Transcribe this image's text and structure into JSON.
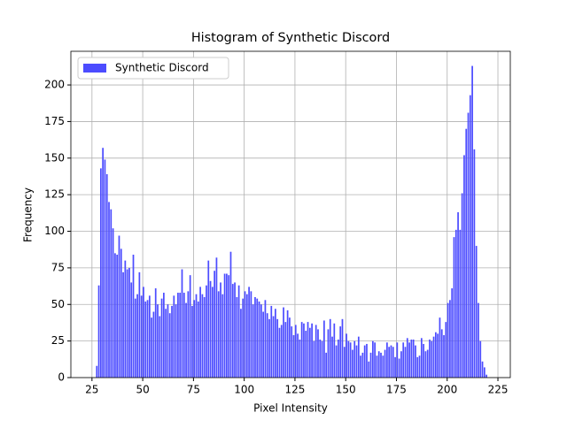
{
  "chart_data": {
    "type": "histogram",
    "title": "Histogram of Synthetic Discord",
    "xlabel": "Pixel Intensity",
    "ylabel": "Frequency",
    "bins": [
      27,
      28,
      29,
      30,
      31,
      32,
      33,
      34,
      35,
      36,
      37,
      38,
      39,
      40,
      41,
      42,
      43,
      44,
      45,
      46,
      47,
      48,
      49,
      50,
      51,
      52,
      53,
      54,
      55,
      56,
      57,
      58,
      59,
      60,
      61,
      62,
      63,
      64,
      65,
      66,
      67,
      68,
      69,
      70,
      71,
      72,
      73,
      74,
      75,
      76,
      77,
      78,
      79,
      80,
      81,
      82,
      83,
      84,
      85,
      86,
      87,
      88,
      89,
      90,
      91,
      92,
      93,
      94,
      95,
      96,
      97,
      98,
      99,
      100,
      101,
      102,
      103,
      104,
      105,
      106,
      107,
      108,
      109,
      110,
      111,
      112,
      113,
      114,
      115,
      116,
      117,
      118,
      119,
      120,
      121,
      122,
      123,
      124,
      125,
      126,
      127,
      128,
      129,
      130,
      131,
      132,
      133,
      134,
      135,
      136,
      137,
      138,
      139,
      140,
      141,
      142,
      143,
      144,
      145,
      146,
      147,
      148,
      149,
      150,
      151,
      152,
      153,
      154,
      155,
      156,
      157,
      158,
      159,
      160,
      161,
      162,
      163,
      164,
      165,
      166,
      167,
      168,
      169,
      170,
      171,
      172,
      173,
      174,
      175,
      176,
      177,
      178,
      179,
      180,
      181,
      182,
      183,
      184,
      185,
      186,
      187,
      188,
      189,
      190,
      191,
      192,
      193,
      194,
      195,
      196,
      197,
      198,
      199,
      200,
      201,
      202,
      203,
      204,
      205,
      206,
      207,
      208,
      209,
      210,
      211,
      212,
      213,
      214,
      215,
      216,
      217,
      218,
      219,
      220
    ],
    "series": [
      {
        "name": "Synthetic Discord",
        "color": "#4c4cff",
        "values": [
          8,
          63,
          143,
          157,
          149,
          139,
          120,
          115,
          102,
          85,
          84,
          97,
          88,
          72,
          80,
          74,
          75,
          65,
          84,
          54,
          57,
          72,
          56,
          62,
          52,
          53,
          56,
          41,
          45,
          61,
          50,
          42,
          54,
          58,
          47,
          50,
          44,
          49,
          56,
          50,
          58,
          58,
          74,
          58,
          51,
          59,
          70,
          49,
          53,
          57,
          52,
          62,
          57,
          55,
          63,
          80,
          66,
          62,
          73,
          82,
          59,
          65,
          57,
          71,
          71,
          70,
          86,
          64,
          65,
          55,
          63,
          47,
          54,
          59,
          57,
          62,
          59,
          50,
          55,
          54,
          52,
          50,
          45,
          53,
          44,
          40,
          49,
          42,
          47,
          40,
          34,
          36,
          48,
          38,
          46,
          41,
          35,
          29,
          36,
          30,
          26,
          38,
          37,
          32,
          38,
          34,
          37,
          25,
          36,
          33,
          26,
          25,
          39,
          17,
          33,
          40,
          28,
          37,
          22,
          26,
          35,
          40,
          21,
          30,
          25,
          24,
          19,
          25,
          22,
          28,
          15,
          17,
          22,
          23,
          11,
          17,
          25,
          24,
          15,
          18,
          17,
          15,
          19,
          24,
          21,
          22,
          21,
          14,
          24,
          13,
          18,
          24,
          21,
          27,
          24,
          26,
          26,
          22,
          14,
          15,
          27,
          23,
          18,
          19,
          26,
          25,
          28,
          31,
          30,
          41,
          33,
          29,
          38,
          51,
          53,
          61,
          96,
          101,
          113,
          101,
          126,
          152,
          170,
          181,
          193,
          213,
          156,
          90,
          51,
          25,
          11,
          7,
          2
        ]
      }
    ],
    "xlim": [
      14.6,
      231.1
    ],
    "ylim": [
      0,
      223
    ],
    "xticks": [
      25,
      50,
      75,
      100,
      125,
      150,
      175,
      200,
      225
    ],
    "yticks": [
      0,
      25,
      50,
      75,
      100,
      125,
      150,
      175,
      200
    ],
    "grid": true,
    "legend": "upper left"
  }
}
